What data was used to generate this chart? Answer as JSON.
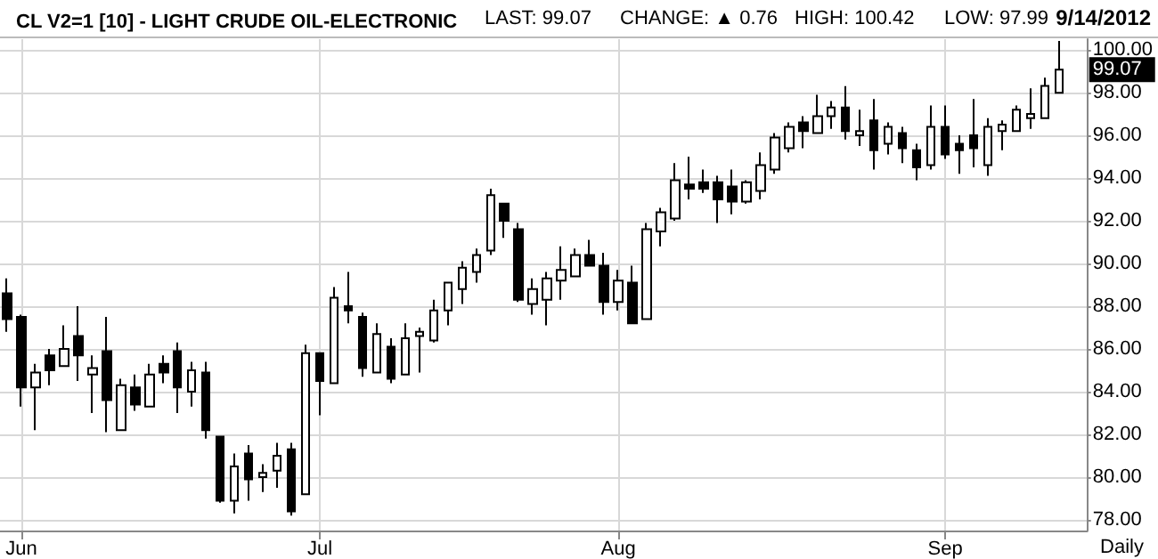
{
  "chart_data": {
    "type": "candlestick",
    "title": "CL V2=1 [10] - LIGHT CRUDE OIL-ELECTRONIC",
    "annotations": [
      "LAST: 99.07",
      "CHANGE: ▲ 0.76",
      "HIGH: 100.42",
      "LOW: 97.99",
      "9/14/2012",
      "Daily",
      "99.07"
    ],
    "categories": [
      null,
      "Jun",
      null,
      null,
      null,
      null,
      null,
      null,
      null,
      null,
      null,
      null,
      null,
      null,
      null,
      null,
      null,
      null,
      null,
      null,
      null,
      null,
      "Jul",
      null,
      null,
      null,
      null,
      null,
      null,
      null,
      null,
      null,
      null,
      null,
      null,
      null,
      null,
      null,
      null,
      null,
      null,
      null,
      null,
      "Aug",
      null,
      null,
      null,
      null,
      null,
      null,
      null,
      null,
      null,
      null,
      null,
      null,
      null,
      null,
      null,
      null,
      null,
      null,
      null,
      null,
      null,
      null,
      "Sep",
      null,
      null,
      null,
      null,
      null,
      null,
      null,
      null
    ],
    "ohlc": [
      [
        88.6,
        89.3,
        86.8,
        87.4
      ],
      [
        87.5,
        87.6,
        83.3,
        84.2
      ],
      [
        84.2,
        85.3,
        82.2,
        84.9
      ],
      [
        85.7,
        86.0,
        84.3,
        85.0
      ],
      [
        85.2,
        87.1,
        85.2,
        86.0
      ],
      [
        86.6,
        88.0,
        84.5,
        85.7
      ],
      [
        84.8,
        85.7,
        83.0,
        85.1
      ],
      [
        85.9,
        87.5,
        82.1,
        83.6
      ],
      [
        82.2,
        84.6,
        82.2,
        84.3
      ],
      [
        84.2,
        84.8,
        83.1,
        83.4
      ],
      [
        83.3,
        85.3,
        83.3,
        84.8
      ],
      [
        85.3,
        85.7,
        84.4,
        84.9
      ],
      [
        85.9,
        86.3,
        83.0,
        84.2
      ],
      [
        84.0,
        85.4,
        83.3,
        85.0
      ],
      [
        84.9,
        85.4,
        81.8,
        82.2
      ],
      [
        81.9,
        81.9,
        78.8,
        78.9
      ],
      [
        78.9,
        81.1,
        78.3,
        80.5
      ],
      [
        81.1,
        81.5,
        78.9,
        79.9
      ],
      [
        80.0,
        80.6,
        79.3,
        80.2
      ],
      [
        80.3,
        81.6,
        79.5,
        81.0
      ],
      [
        81.3,
        81.6,
        78.2,
        78.4
      ],
      [
        79.2,
        86.2,
        79.2,
        85.8
      ],
      [
        85.8,
        85.8,
        82.9,
        84.5
      ],
      [
        84.4,
        88.9,
        84.4,
        88.4
      ],
      [
        88.0,
        89.6,
        87.2,
        87.8
      ],
      [
        87.5,
        87.7,
        84.7,
        85.1
      ],
      [
        84.9,
        87.2,
        84.9,
        86.7
      ],
      [
        86.1,
        86.5,
        84.4,
        84.6
      ],
      [
        84.8,
        87.2,
        84.8,
        86.5
      ],
      [
        86.6,
        87.0,
        84.9,
        86.8
      ],
      [
        86.4,
        88.3,
        86.3,
        87.8
      ],
      [
        87.8,
        89.1,
        87.1,
        89.1
      ],
      [
        88.8,
        90.1,
        88.1,
        89.8
      ],
      [
        89.6,
        90.7,
        89.1,
        90.4
      ],
      [
        90.6,
        93.5,
        90.4,
        93.2
      ],
      [
        92.8,
        92.8,
        91.2,
        92.0
      ],
      [
        91.6,
        91.9,
        88.2,
        88.3
      ],
      [
        88.1,
        89.3,
        87.6,
        88.8
      ],
      [
        88.3,
        89.6,
        87.1,
        89.3
      ],
      [
        89.2,
        90.8,
        88.3,
        89.7
      ],
      [
        89.4,
        90.7,
        89.4,
        90.4
      ],
      [
        90.4,
        91.1,
        89.9,
        89.9
      ],
      [
        89.9,
        90.5,
        87.6,
        88.2
      ],
      [
        88.2,
        89.7,
        87.8,
        89.2
      ],
      [
        89.1,
        89.9,
        87.2,
        87.2
      ],
      [
        87.4,
        91.9,
        87.4,
        91.6
      ],
      [
        91.5,
        92.6,
        90.8,
        92.4
      ],
      [
        92.1,
        94.7,
        92.0,
        93.9
      ],
      [
        93.7,
        95.0,
        93.0,
        93.5
      ],
      [
        93.8,
        94.4,
        93.3,
        93.5
      ],
      [
        93.8,
        94.1,
        91.9,
        93.0
      ],
      [
        93.6,
        94.4,
        92.3,
        92.9
      ],
      [
        92.9,
        93.9,
        92.8,
        93.8
      ],
      [
        93.4,
        95.2,
        93.0,
        94.6
      ],
      [
        94.4,
        96.1,
        94.2,
        95.9
      ],
      [
        95.4,
        96.6,
        95.2,
        96.4
      ],
      [
        96.6,
        96.9,
        95.4,
        96.2
      ],
      [
        96.1,
        97.9,
        96.1,
        96.9
      ],
      [
        96.9,
        97.6,
        96.3,
        97.3
      ],
      [
        97.3,
        98.3,
        95.8,
        96.2
      ],
      [
        96.0,
        97.2,
        95.5,
        96.2
      ],
      [
        96.7,
        97.7,
        94.4,
        95.3
      ],
      [
        95.6,
        96.6,
        95.1,
        96.4
      ],
      [
        96.1,
        96.4,
        94.7,
        95.4
      ],
      [
        95.3,
        95.6,
        93.9,
        94.5
      ],
      [
        94.6,
        97.4,
        94.4,
        96.4
      ],
      [
        96.4,
        97.4,
        94.9,
        95.1
      ],
      [
        95.6,
        96.0,
        94.2,
        95.3
      ],
      [
        96.0,
        97.7,
        94.5,
        95.4
      ],
      [
        94.6,
        96.8,
        94.1,
        96.4
      ],
      [
        96.2,
        96.7,
        95.3,
        96.5
      ],
      [
        96.2,
        97.4,
        96.2,
        97.2
      ],
      [
        96.8,
        98.2,
        96.3,
        97.0
      ],
      [
        96.8,
        98.7,
        96.8,
        98.31
      ],
      [
        97.99,
        100.42,
        97.99,
        99.07
      ]
    ],
    "color": "#000000",
    "ylim": [
      77.5,
      100.5
    ],
    "yticks": [
      {
        "value": 78,
        "label": "78.00"
      },
      {
        "value": 80,
        "label": "80.00"
      },
      {
        "value": 82,
        "label": "82.00"
      },
      {
        "value": 84,
        "label": "84.00"
      },
      {
        "value": 86,
        "label": "86.00"
      },
      {
        "value": 88,
        "label": "88.00"
      },
      {
        "value": 90,
        "label": "90.00"
      },
      {
        "value": 92,
        "label": "92.00"
      },
      {
        "value": 94,
        "label": "94.00"
      },
      {
        "value": 96,
        "label": "96.00"
      },
      {
        "value": 98,
        "label": "98.00"
      },
      {
        "value": 100,
        "label": "100.00"
      }
    ],
    "grid": true
  }
}
